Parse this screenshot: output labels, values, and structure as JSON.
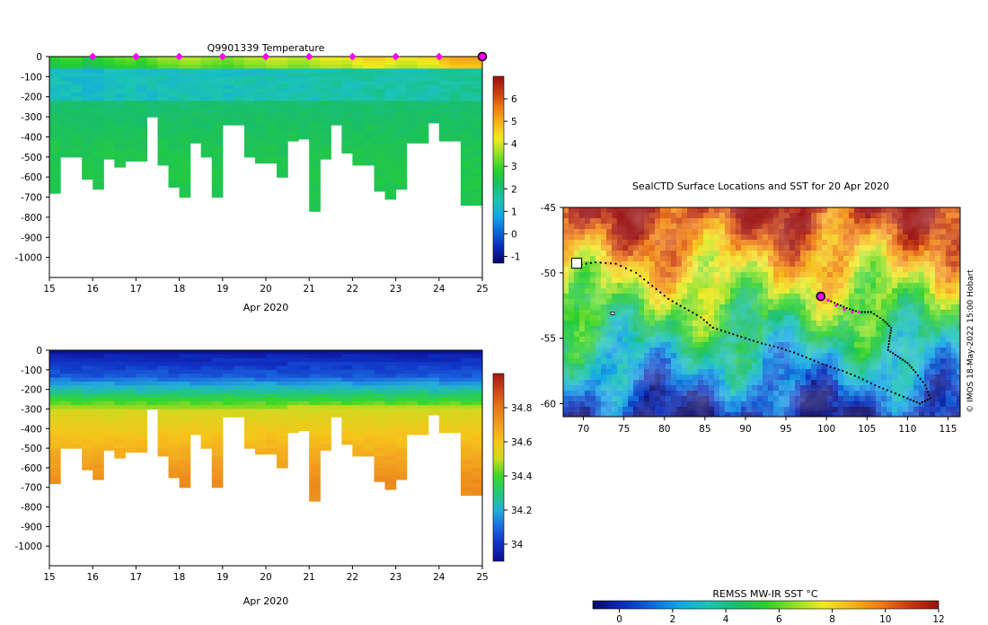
{
  "colors": {
    "temp_scale": [
      "#08086b",
      "#0a2ab8",
      "#0a66d8",
      "#12a6e6",
      "#1cc4b4",
      "#19be6a",
      "#2ad02a",
      "#8ee02a",
      "#f2ea22",
      "#f6b41a",
      "#ee7a16",
      "#c43a10",
      "#9a1010"
    ],
    "sal_scale": [
      "#0c0c8a",
      "#1030c4",
      "#1c68e0",
      "#22b0d8",
      "#22c878",
      "#3ad628",
      "#ccdc20",
      "#f6c41c",
      "#f09c20",
      "#e67818",
      "#cc4818",
      "#a01a0c"
    ],
    "sst_scale": [
      "#08086b",
      "#0a2ab8",
      "#0a66d8",
      "#12a6e6",
      "#1cc4b4",
      "#19be6a",
      "#2ad02a",
      "#8ee02a",
      "#f2ea22",
      "#f6b41a",
      "#ee7a16",
      "#c43a10",
      "#9a1010"
    ],
    "marker": "#ff00ff",
    "track": "#000000"
  },
  "chart_data": [
    {
      "type": "heatmap",
      "id": "temperature",
      "title": "Q9901339  Temperature",
      "xlabel": "Apr 2020",
      "ylabel": "",
      "xlim": [
        15,
        25
      ],
      "ylim": [
        -1100,
        0
      ],
      "xticks": [
        15,
        16,
        17,
        18,
        19,
        20,
        21,
        22,
        23,
        24,
        25
      ],
      "yticks": [
        0,
        -100,
        -200,
        -300,
        -400,
        -500,
        -600,
        -700,
        -800,
        -900,
        -1000
      ],
      "colorbar": {
        "range": [
          -1.3,
          7
        ],
        "ticks": [
          -1,
          0,
          1,
          2,
          3,
          4,
          5,
          6
        ]
      },
      "profile_times": [
        15.0,
        15.25,
        15.5,
        15.75,
        16.0,
        16.25,
        16.5,
        16.75,
        17.0,
        17.25,
        17.5,
        17.75,
        18.0,
        18.25,
        18.5,
        18.75,
        19.0,
        19.25,
        19.5,
        19.75,
        20.0,
        20.25,
        20.5,
        20.75,
        21.0,
        21.25,
        21.5,
        21.75,
        22.0,
        22.25,
        22.5,
        22.75,
        23.0,
        23.25,
        23.5,
        23.75,
        24.0,
        24.25,
        24.5,
        24.75,
        25.0
      ],
      "profile_depths": [
        680,
        500,
        500,
        610,
        660,
        510,
        550,
        520,
        520,
        300,
        540,
        650,
        700,
        430,
        500,
        700,
        340,
        340,
        500,
        530,
        530,
        600,
        420,
        410,
        770,
        510,
        340,
        480,
        540,
        540,
        670,
        710,
        660,
        430,
        430,
        330,
        420,
        420,
        740,
        740,
        740
      ],
      "surface_temps": [
        2.8,
        3.0,
        3.0,
        2.6,
        2.8,
        3.0,
        3.2,
        3.3,
        3.0,
        3.3,
        3.6,
        3.6,
        3.8,
        3.8,
        3.6,
        3.5,
        3.4,
        3.6,
        3.8,
        3.8,
        4.0,
        4.0,
        3.8,
        3.8,
        4.0,
        4.2,
        4.2,
        4.1,
        4.4,
        4.6,
        4.6,
        4.4,
        4.2,
        4.2,
        4.4,
        4.4,
        4.9,
        5.1,
        5.1,
        5.1,
        5.1
      ],
      "surface_markers": [
        16,
        17,
        18,
        19,
        20,
        21,
        22,
        23,
        24
      ],
      "current_marker": 25
    },
    {
      "type": "heatmap",
      "id": "salinity",
      "title": "",
      "xlabel": "Apr 2020",
      "ylabel": "",
      "xlim": [
        15,
        25
      ],
      "ylim": [
        -1100,
        0
      ],
      "xticks": [
        15,
        16,
        17,
        18,
        19,
        20,
        21,
        22,
        23,
        24,
        25
      ],
      "yticks": [
        0,
        -100,
        -200,
        -300,
        -400,
        -500,
        -600,
        -700,
        -800,
        -900,
        -1000
      ],
      "colorbar": {
        "range": [
          33.9,
          35.0
        ],
        "ticks": [
          34,
          34.2,
          34.4,
          34.6,
          34.8
        ]
      }
    },
    {
      "type": "heatmap",
      "id": "sst_map",
      "title": "SealCTD Surface Locations and SST for 20 Apr 2020",
      "xlabel": "",
      "ylabel": "",
      "xlim": [
        67.5,
        116.5
      ],
      "ylim": [
        -61,
        -45
      ],
      "xticks": [
        70,
        75,
        80,
        85,
        90,
        95,
        100,
        105,
        110,
        115
      ],
      "yticks": [
        -45,
        -50,
        -55,
        -60
      ],
      "colorbar": {
        "label": "REMSS MW-IR SST °C",
        "range": [
          -1,
          12
        ],
        "ticks": [
          0,
          2,
          4,
          6,
          8,
          10,
          12
        ]
      },
      "track": [
        [
          69.2,
          -49.4
        ],
        [
          71.5,
          -49.2
        ],
        [
          74.0,
          -49.3
        ],
        [
          76.5,
          -50.0
        ],
        [
          78.5,
          -51.0
        ],
        [
          80.5,
          -52.0
        ],
        [
          82.5,
          -52.7
        ],
        [
          84.5,
          -53.4
        ],
        [
          86.0,
          -54.2
        ],
        [
          88.0,
          -54.6
        ],
        [
          90.0,
          -55.0
        ],
        [
          92.0,
          -55.4
        ],
        [
          94.0,
          -55.7
        ],
        [
          96.0,
          -56.1
        ],
        [
          98.0,
          -56.6
        ],
        [
          100.0,
          -57.1
        ],
        [
          102.0,
          -57.5
        ],
        [
          104.0,
          -58.0
        ],
        [
          106.0,
          -58.6
        ],
        [
          108.0,
          -59.1
        ],
        [
          110.0,
          -59.6
        ],
        [
          111.5,
          -60.0
        ],
        [
          112.8,
          -59.6
        ],
        [
          112.2,
          -58.6
        ],
        [
          111.0,
          -57.6
        ],
        [
          110.0,
          -56.9
        ],
        [
          108.8,
          -56.4
        ],
        [
          107.6,
          -55.9
        ],
        [
          107.8,
          -55.0
        ],
        [
          108.0,
          -54.2
        ],
        [
          107.0,
          -53.6
        ],
        [
          105.5,
          -53.0
        ],
        [
          104.0,
          -53.0
        ],
        [
          102.5,
          -52.7
        ],
        [
          101.0,
          -52.3
        ],
        [
          99.3,
          -51.8
        ]
      ],
      "recent_track": [
        [
          99.3,
          -51.8
        ],
        [
          100.2,
          -52.1
        ],
        [
          101.2,
          -52.5
        ],
        [
          102.2,
          -52.8
        ],
        [
          103.2,
          -53.0
        ],
        [
          104.0,
          -53.0
        ]
      ],
      "current_position": [
        99.3,
        -51.8
      ],
      "island": [
        69.0,
        -49.3
      ],
      "small_island": [
        73.6,
        -53.1
      ]
    }
  ],
  "side_label": "© IMOS 18-May-2022 15:00 Hobart"
}
